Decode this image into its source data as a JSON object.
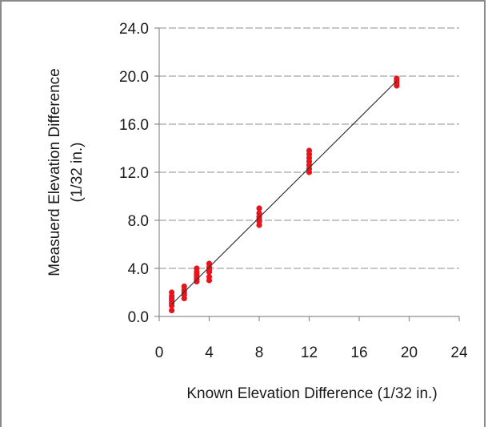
{
  "chart_data": {
    "type": "scatter",
    "title": "",
    "xlabel": "Known Elevation Difference  (1/32 in.)",
    "ylabel_lines": [
      "Measuerd Elevation Difference",
      "(1/32 in.)"
    ],
    "xlim": [
      0,
      24
    ],
    "ylim": [
      0,
      24
    ],
    "xticks": [
      0,
      4,
      8,
      12,
      16,
      20,
      24
    ],
    "yticks": [
      0,
      4,
      8,
      12,
      16,
      20,
      24
    ],
    "xtick_labels": [
      "0",
      "4",
      "8",
      "12",
      "16",
      "20",
      "24"
    ],
    "ytick_labels": [
      "0.0",
      "4.0",
      "8.0",
      "12.0",
      "16.0",
      "20.0",
      "24.0"
    ],
    "grid": "horizontal-dashed",
    "marker_color": "#e8141c",
    "line_color": "#333333",
    "series": [
      {
        "points": [
          [
            1,
            0.5
          ],
          [
            1,
            0.9
          ],
          [
            1,
            1.1
          ],
          [
            1,
            1.3
          ],
          [
            1,
            1.5
          ],
          [
            1,
            1.7
          ],
          [
            1,
            2.0
          ],
          [
            2,
            1.5
          ],
          [
            2,
            1.8
          ],
          [
            2,
            2.0
          ],
          [
            2,
            2.2
          ],
          [
            2,
            2.5
          ],
          [
            3,
            2.9
          ],
          [
            3,
            3.1
          ],
          [
            3,
            3.3
          ],
          [
            3,
            3.5
          ],
          [
            3,
            3.7
          ],
          [
            3,
            4.0
          ],
          [
            4,
            3.0
          ],
          [
            4,
            3.3
          ],
          [
            4,
            3.7
          ],
          [
            4,
            3.9
          ],
          [
            4,
            4.1
          ],
          [
            4,
            4.4
          ],
          [
            8,
            7.6
          ],
          [
            8,
            7.9
          ],
          [
            8,
            8.1
          ],
          [
            8,
            8.3
          ],
          [
            8,
            8.6
          ],
          [
            8,
            9.0
          ],
          [
            12,
            12.0
          ],
          [
            12,
            12.3
          ],
          [
            12,
            12.6
          ],
          [
            12,
            12.9
          ],
          [
            12,
            13.2
          ],
          [
            12,
            13.5
          ],
          [
            12,
            13.8
          ],
          [
            19,
            19.2
          ],
          [
            19,
            19.4
          ],
          [
            19,
            19.6
          ],
          [
            19,
            19.8
          ]
        ]
      }
    ],
    "fit_line": [
      [
        1,
        1
      ],
      [
        19,
        19.6
      ]
    ]
  }
}
